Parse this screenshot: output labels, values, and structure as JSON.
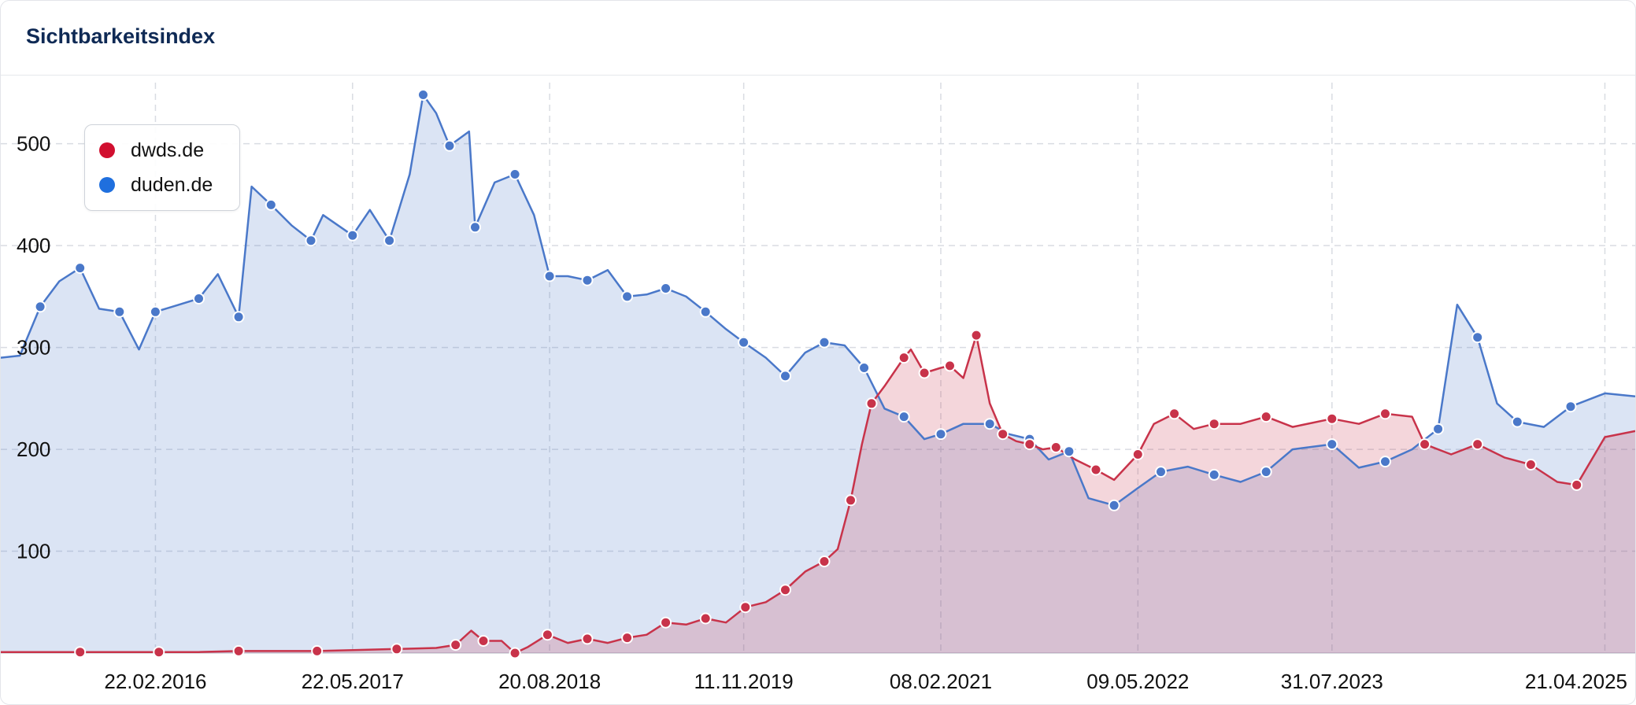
{
  "header": {
    "title": "Sichtbarkeitsindex"
  },
  "colors": {
    "dwds": "#c8334a",
    "duden": "#4a78c9",
    "legend_dwds": "#d10f2f",
    "legend_duden": "#1f6fde"
  },
  "chart_data": {
    "type": "area",
    "title": "Sichtbarkeitsindex",
    "xlabel": "",
    "ylabel": "",
    "x_range": [
      "2015-03-02",
      "2025-06-30"
    ],
    "ylim": [
      0,
      560
    ],
    "y_ticks": [
      100,
      200,
      300,
      400,
      500
    ],
    "x_ticks": [
      "22.02.2016",
      "22.05.2017",
      "20.08.2018",
      "11.11.2019",
      "08.02.2021",
      "09.05.2022",
      "31.07.2023",
      "21.04.2025"
    ],
    "grid": true,
    "legend": "top-left",
    "series": [
      {
        "name": "dwds.de",
        "key": "dwds",
        "points": [
          [
            "2015-03-02",
            1
          ],
          [
            "2015-06-01",
            1
          ],
          [
            "2015-09-01",
            1
          ],
          [
            "2015-12-01",
            1
          ],
          [
            "2016-03-01",
            1
          ],
          [
            "2016-06-01",
            1
          ],
          [
            "2016-09-01",
            2
          ],
          [
            "2016-12-01",
            2
          ],
          [
            "2017-03-01",
            2
          ],
          [
            "2017-06-01",
            3
          ],
          [
            "2017-09-01",
            4
          ],
          [
            "2017-12-01",
            5
          ],
          [
            "2018-01-15",
            8
          ],
          [
            "2018-02-20",
            22
          ],
          [
            "2018-03-20",
            12
          ],
          [
            "2018-05-01",
            12
          ],
          [
            "2018-06-01",
            0
          ],
          [
            "2018-07-01",
            6
          ],
          [
            "2018-08-15",
            18
          ],
          [
            "2018-10-01",
            10
          ],
          [
            "2018-11-15",
            14
          ],
          [
            "2019-01-01",
            10
          ],
          [
            "2019-02-15",
            15
          ],
          [
            "2019-04-01",
            18
          ],
          [
            "2019-05-15",
            30
          ],
          [
            "2019-07-01",
            28
          ],
          [
            "2019-08-15",
            34
          ],
          [
            "2019-10-01",
            30
          ],
          [
            "2019-11-15",
            45
          ],
          [
            "2020-01-01",
            50
          ],
          [
            "2020-02-15",
            62
          ],
          [
            "2020-04-01",
            80
          ],
          [
            "2020-05-15",
            90
          ],
          [
            "2020-06-15",
            102
          ],
          [
            "2020-07-15",
            150
          ],
          [
            "2020-08-10",
            205
          ],
          [
            "2020-09-01",
            245
          ],
          [
            "2020-10-01",
            262
          ],
          [
            "2020-11-15",
            290
          ],
          [
            "2020-12-01",
            298
          ],
          [
            "2021-01-01",
            275
          ],
          [
            "2021-02-08",
            280
          ],
          [
            "2021-03-01",
            282
          ],
          [
            "2021-04-01",
            270
          ],
          [
            "2021-05-01",
            312
          ],
          [
            "2021-06-01",
            245
          ],
          [
            "2021-07-01",
            215
          ],
          [
            "2021-08-01",
            208
          ],
          [
            "2021-09-01",
            205
          ],
          [
            "2021-10-01",
            200
          ],
          [
            "2021-11-01",
            202
          ],
          [
            "2021-12-15",
            190
          ],
          [
            "2022-02-01",
            180
          ],
          [
            "2022-03-15",
            170
          ],
          [
            "2022-05-09",
            195
          ],
          [
            "2022-06-15",
            225
          ],
          [
            "2022-08-01",
            235
          ],
          [
            "2022-09-15",
            220
          ],
          [
            "2022-11-01",
            225
          ],
          [
            "2023-01-01",
            225
          ],
          [
            "2023-03-01",
            232
          ],
          [
            "2023-05-01",
            222
          ],
          [
            "2023-07-31",
            230
          ],
          [
            "2023-10-01",
            225
          ],
          [
            "2023-12-01",
            235
          ],
          [
            "2024-02-01",
            232
          ],
          [
            "2024-03-01",
            205
          ],
          [
            "2024-05-01",
            195
          ],
          [
            "2024-07-01",
            205
          ],
          [
            "2024-09-01",
            192
          ],
          [
            "2024-11-01",
            185
          ],
          [
            "2025-01-01",
            168
          ],
          [
            "2025-02-15",
            165
          ],
          [
            "2025-04-21",
            212
          ],
          [
            "2025-06-30",
            218
          ]
        ]
      },
      {
        "name": "duden.de",
        "key": "duden",
        "points": [
          [
            "2015-03-02",
            290
          ],
          [
            "2015-04-15",
            292
          ],
          [
            "2015-06-01",
            340
          ],
          [
            "2015-07-15",
            365
          ],
          [
            "2015-09-01",
            378
          ],
          [
            "2015-10-15",
            338
          ],
          [
            "2015-12-01",
            335
          ],
          [
            "2016-01-15",
            298
          ],
          [
            "2016-02-22",
            335
          ],
          [
            "2016-04-01",
            340
          ],
          [
            "2016-06-01",
            348
          ],
          [
            "2016-07-15",
            372
          ],
          [
            "2016-09-01",
            330
          ],
          [
            "2016-10-01",
            458
          ],
          [
            "2016-11-15",
            440
          ],
          [
            "2017-01-01",
            420
          ],
          [
            "2017-02-15",
            405
          ],
          [
            "2017-03-15",
            430
          ],
          [
            "2017-05-22",
            410
          ],
          [
            "2017-07-01",
            435
          ],
          [
            "2017-08-15",
            405
          ],
          [
            "2017-10-01",
            470
          ],
          [
            "2017-11-01",
            548
          ],
          [
            "2017-12-01",
            530
          ],
          [
            "2018-01-01",
            498
          ],
          [
            "2018-02-15",
            512
          ],
          [
            "2018-03-01",
            418
          ],
          [
            "2018-04-15",
            462
          ],
          [
            "2018-06-01",
            470
          ],
          [
            "2018-07-15",
            430
          ],
          [
            "2018-08-20",
            370
          ],
          [
            "2018-10-01",
            370
          ],
          [
            "2018-11-15",
            366
          ],
          [
            "2019-01-01",
            376
          ],
          [
            "2019-02-15",
            350
          ],
          [
            "2019-04-01",
            352
          ],
          [
            "2019-05-15",
            358
          ],
          [
            "2019-07-01",
            350
          ],
          [
            "2019-08-15",
            335
          ],
          [
            "2019-10-01",
            318
          ],
          [
            "2019-11-11",
            305
          ],
          [
            "2020-01-01",
            290
          ],
          [
            "2020-02-15",
            272
          ],
          [
            "2020-04-01",
            295
          ],
          [
            "2020-05-15",
            305
          ],
          [
            "2020-07-01",
            302
          ],
          [
            "2020-08-15",
            280
          ],
          [
            "2020-10-01",
            240
          ],
          [
            "2020-11-15",
            232
          ],
          [
            "2021-01-01",
            210
          ],
          [
            "2021-02-08",
            215
          ],
          [
            "2021-04-01",
            225
          ],
          [
            "2021-06-01",
            225
          ],
          [
            "2021-07-15",
            215
          ],
          [
            "2021-09-01",
            210
          ],
          [
            "2021-10-15",
            190
          ],
          [
            "2021-12-01",
            198
          ],
          [
            "2022-01-15",
            152
          ],
          [
            "2022-03-15",
            145
          ],
          [
            "2022-05-09",
            162
          ],
          [
            "2022-07-01",
            178
          ],
          [
            "2022-09-01",
            183
          ],
          [
            "2022-11-01",
            175
          ],
          [
            "2023-01-01",
            168
          ],
          [
            "2023-03-01",
            178
          ],
          [
            "2023-05-01",
            200
          ],
          [
            "2023-07-31",
            205
          ],
          [
            "2023-10-01",
            182
          ],
          [
            "2023-12-01",
            188
          ],
          [
            "2024-02-01",
            200
          ],
          [
            "2024-04-01",
            220
          ],
          [
            "2024-05-15",
            342
          ],
          [
            "2024-07-01",
            310
          ],
          [
            "2024-08-15",
            245
          ],
          [
            "2024-10-01",
            227
          ],
          [
            "2024-12-01",
            222
          ],
          [
            "2025-02-01",
            242
          ],
          [
            "2025-04-21",
            255
          ],
          [
            "2025-06-30",
            252
          ]
        ]
      }
    ]
  }
}
